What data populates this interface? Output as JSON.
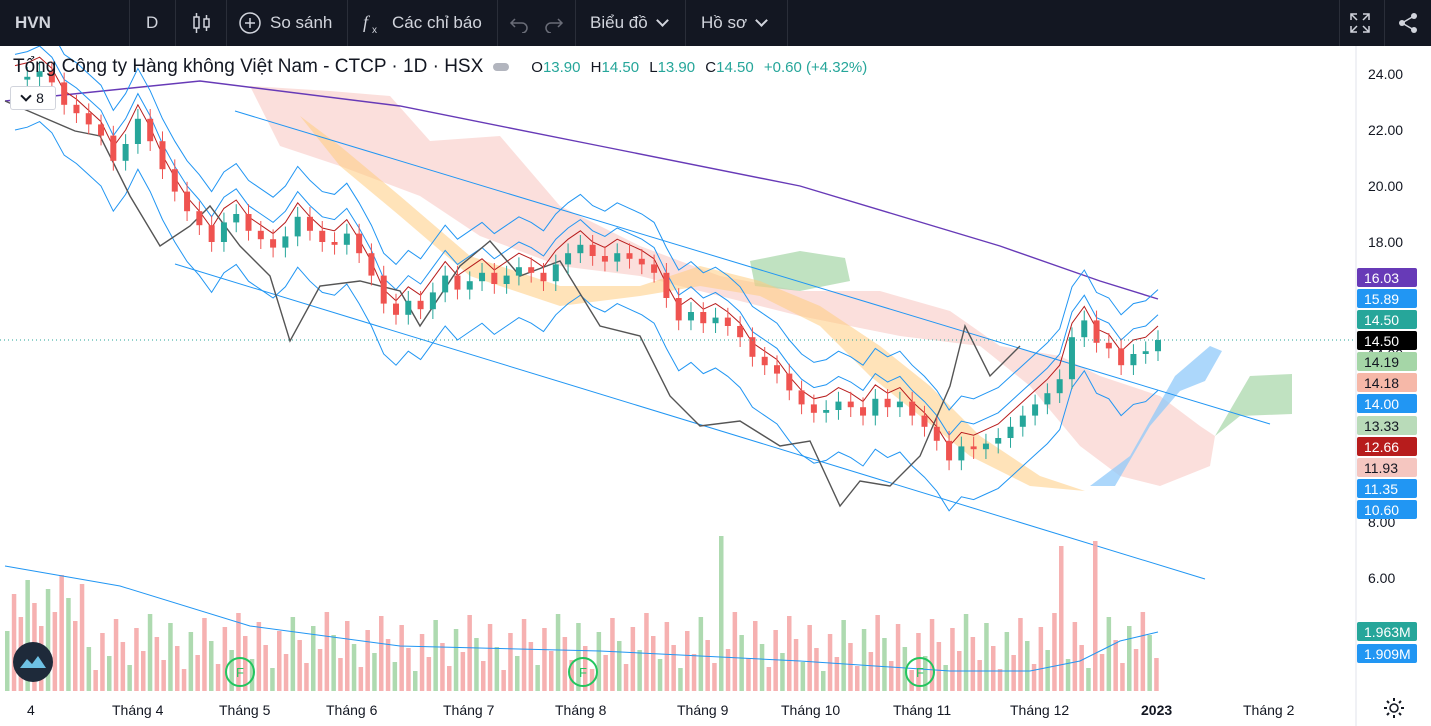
{
  "toolbar": {
    "symbol": "HVN",
    "interval": "D",
    "compare_label": "So sánh",
    "indicators_label": "Các chỉ báo",
    "chart_type_label": "Biểu đồ",
    "profile_label": "Hồ sơ",
    "icons": [
      "candles-icon",
      "plus-circle-icon",
      "fx-icon",
      "undo-icon",
      "redo-icon",
      "fullscreen-icon",
      "share-icon"
    ]
  },
  "legend": {
    "title": "Tổng Công ty Hàng không Việt Nam - CTCP · 1D · HSX",
    "o_label": "O",
    "o": "13.90",
    "h_label": "H",
    "h": "14.50",
    "l_label": "L",
    "l": "13.90",
    "c_label": "C",
    "c": "14.50",
    "change": "+0.60 (+4.32%)",
    "collapsed_count": "8"
  },
  "chart_data": {
    "type": "line",
    "series_type": "candlestick with Ichimoku cloud, Bollinger bands, moving averages, trend channel and volume",
    "close": [
      23.8,
      23.9,
      24.1,
      23.7,
      22.9,
      22.6,
      22.2,
      21.8,
      20.9,
      21.5,
      22.4,
      21.6,
      20.6,
      19.8,
      19.1,
      18.6,
      18.0,
      18.7,
      19.0,
      18.4,
      18.1,
      17.8,
      18.2,
      18.9,
      18.4,
      18.0,
      17.9,
      18.3,
      17.6,
      16.8,
      15.8,
      15.4,
      15.9,
      15.6,
      16.2,
      16.8,
      16.3,
      16.6,
      16.9,
      16.5,
      16.8,
      17.1,
      16.9,
      16.6,
      17.2,
      17.6,
      17.9,
      17.5,
      17.3,
      17.6,
      17.4,
      17.2,
      16.9,
      16.0,
      15.2,
      15.5,
      15.1,
      15.3,
      15.0,
      14.6,
      13.9,
      13.6,
      13.3,
      12.7,
      12.2,
      11.9,
      12.0,
      12.3,
      12.1,
      11.8,
      12.4,
      12.1,
      12.3,
      11.8,
      11.4,
      10.9,
      10.2,
      10.7,
      10.6,
      10.8,
      11.0,
      11.4,
      11.8,
      12.2,
      12.6,
      13.1,
      14.6,
      15.2,
      14.4,
      14.2,
      13.6,
      14.0,
      14.1,
      14.5
    ],
    "y_ticks": [
      "24.00",
      "22.00",
      "20.00",
      "18.00",
      "14.00",
      "8.00",
      "6.00"
    ],
    "ylim": [
      5,
      25
    ],
    "x_ticks": [
      "4",
      "Tháng 4",
      "Tháng 5",
      "Tháng 6",
      "Tháng 7",
      "Tháng 8",
      "Tháng 9",
      "Tháng 10",
      "Tháng 11",
      "Tháng 12",
      "2023",
      "Tháng 2"
    ],
    "price_tags": [
      {
        "value": "16.03",
        "color": "#673ab7"
      },
      {
        "value": "15.89",
        "color": "#2196f3"
      },
      {
        "value": "14.50",
        "color": "#26a69a"
      },
      {
        "value": "14.50",
        "color": "#000000"
      },
      {
        "value": "14.19",
        "color": "#a5d6a7",
        "text": "#131722"
      },
      {
        "value": "14.18",
        "color": "#f6b8a8",
        "text": "#131722"
      },
      {
        "value": "14.00",
        "color": "#2196f3"
      },
      {
        "value": "13.33",
        "color": "#b9dbb9",
        "text": "#131722"
      },
      {
        "value": "12.66",
        "color": "#b71c1c"
      },
      {
        "value": "11.93",
        "color": "#f5c6c0",
        "text": "#131722"
      },
      {
        "value": "11.35",
        "color": "#2196f3"
      },
      {
        "value": "10.60",
        "color": "#2196f3"
      }
    ],
    "volume_tags": [
      {
        "value": "1.963M",
        "color": "#26a69a"
      },
      {
        "value": "1.909M",
        "color": "#2196f3"
      }
    ],
    "colors": {
      "up": "#26a69a",
      "down": "#ef5350",
      "ma200": "#673ab7",
      "bb": "#2196f3",
      "lagging": "#555555",
      "baseline": "#b71c1c"
    }
  }
}
